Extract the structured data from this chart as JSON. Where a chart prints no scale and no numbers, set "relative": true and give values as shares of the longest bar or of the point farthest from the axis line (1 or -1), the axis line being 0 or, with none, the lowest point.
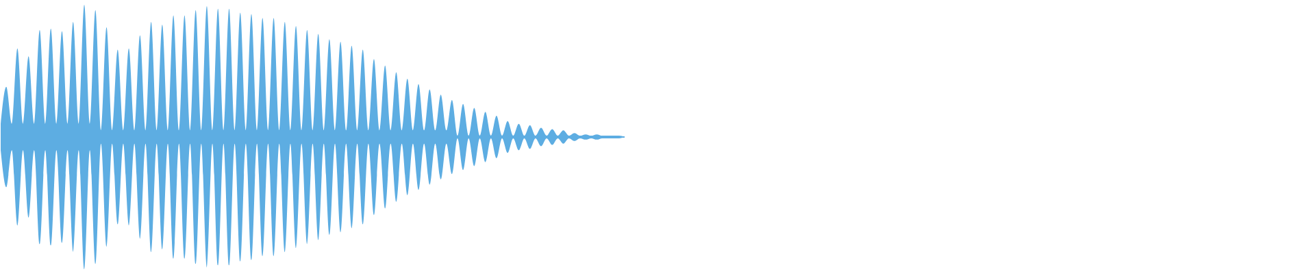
{
  "chart_data": {
    "type": "area",
    "relative": true,
    "ref_lines": [
      {
        "axis": "y",
        "value": 0,
        "color": "#5dade2"
      }
    ],
    "categories": [
      null,
      null,
      null,
      null,
      null,
      null,
      null,
      null,
      null,
      null,
      null,
      null,
      null,
      null,
      null,
      null,
      null,
      null,
      null,
      null,
      null,
      null,
      null,
      null,
      null,
      null,
      null,
      null,
      null,
      null,
      null,
      null,
      null,
      null,
      null,
      null,
      null,
      null,
      null,
      null,
      null,
      null,
      null,
      null,
      null,
      null,
      null,
      null,
      null,
      null,
      null,
      null,
      null,
      null,
      null,
      null,
      null,
      null,
      null,
      null,
      null,
      null,
      null,
      null,
      null,
      null,
      null,
      null,
      null,
      null,
      null,
      null,
      null,
      null,
      null,
      null,
      null,
      null,
      null,
      null,
      null,
      null,
      null,
      null,
      null,
      null,
      null,
      null,
      null,
      null,
      null,
      null,
      null,
      null,
      null,
      null,
      null,
      null,
      null,
      null,
      null,
      null,
      null,
      null,
      null,
      null,
      null,
      null,
      null,
      null,
      null,
      null,
      null
    ],
    "series": [
      {
        "color": "#5dade2",
        "values": [
          0.1,
          0.38,
          0.1,
          0.67,
          0.1,
          0.61,
          0.1,
          0.81,
          0.1,
          0.82,
          0.1,
          0.8,
          0.1,
          0.87,
          0.1,
          1.0,
          0.1,
          0.96,
          0.05,
          0.83,
          0.05,
          0.66,
          0.05,
          0.67,
          0.05,
          0.77,
          0.05,
          0.87,
          0.05,
          0.85,
          0.05,
          0.92,
          0.05,
          0.92,
          0.05,
          0.96,
          0.05,
          0.99,
          0.05,
          0.97,
          0.05,
          0.97,
          0.05,
          0.94,
          0.05,
          0.93,
          0.05,
          0.9,
          0.05,
          0.9,
          0.05,
          0.87,
          0.05,
          0.84,
          0.05,
          0.81,
          0.05,
          0.78,
          0.05,
          0.74,
          0.05,
          0.72,
          0.05,
          0.69,
          0.05,
          0.66,
          0.05,
          0.59,
          0.05,
          0.54,
          0.05,
          0.49,
          0.05,
          0.44,
          0.05,
          0.4,
          0.05,
          0.36,
          0.05,
          0.32,
          0.05,
          0.28,
          0.01,
          0.25,
          0.01,
          0.22,
          0.01,
          0.19,
          0.01,
          0.16,
          0.01,
          0.12,
          0.01,
          0.1,
          0.01,
          0.09,
          0.01,
          0.07,
          0.01,
          0.06,
          0.01,
          0.05,
          0.01,
          0.03,
          0.01,
          0.02,
          0.01,
          0.02,
          0.01,
          0.01,
          0.01,
          0.01,
          0
        ]
      },
      {
        "color": "#5dade2",
        "values": [
          -0.1,
          -0.38,
          -0.1,
          -0.67,
          -0.1,
          -0.61,
          -0.1,
          -0.81,
          -0.1,
          -0.82,
          -0.1,
          -0.8,
          -0.1,
          -0.87,
          -0.1,
          -1.0,
          -0.1,
          -0.96,
          -0.05,
          -0.83,
          -0.05,
          -0.66,
          -0.05,
          -0.67,
          -0.05,
          -0.77,
          -0.05,
          -0.87,
          -0.05,
          -0.85,
          -0.05,
          -0.92,
          -0.05,
          -0.92,
          -0.05,
          -0.96,
          -0.05,
          -0.99,
          -0.05,
          -0.97,
          -0.05,
          -0.97,
          -0.05,
          -0.94,
          -0.05,
          -0.93,
          -0.05,
          -0.9,
          -0.05,
          -0.9,
          -0.05,
          -0.87,
          -0.05,
          -0.84,
          -0.05,
          -0.81,
          -0.05,
          -0.78,
          -0.05,
          -0.74,
          -0.05,
          -0.72,
          -0.05,
          -0.69,
          -0.05,
          -0.66,
          -0.05,
          -0.59,
          -0.05,
          -0.54,
          -0.05,
          -0.49,
          -0.05,
          -0.44,
          -0.05,
          -0.4,
          -0.05,
          -0.36,
          -0.05,
          -0.32,
          -0.05,
          -0.28,
          -0.01,
          -0.25,
          -0.01,
          -0.22,
          -0.01,
          -0.19,
          -0.01,
          -0.16,
          -0.01,
          -0.12,
          -0.01,
          -0.1,
          -0.01,
          -0.09,
          -0.01,
          -0.07,
          -0.01,
          -0.06,
          -0.01,
          -0.05,
          -0.01,
          -0.03,
          -0.01,
          -0.02,
          -0.01,
          -0.02,
          -0.01,
          -0.01,
          -0.01,
          -0.01,
          0
        ]
      }
    ]
  }
}
